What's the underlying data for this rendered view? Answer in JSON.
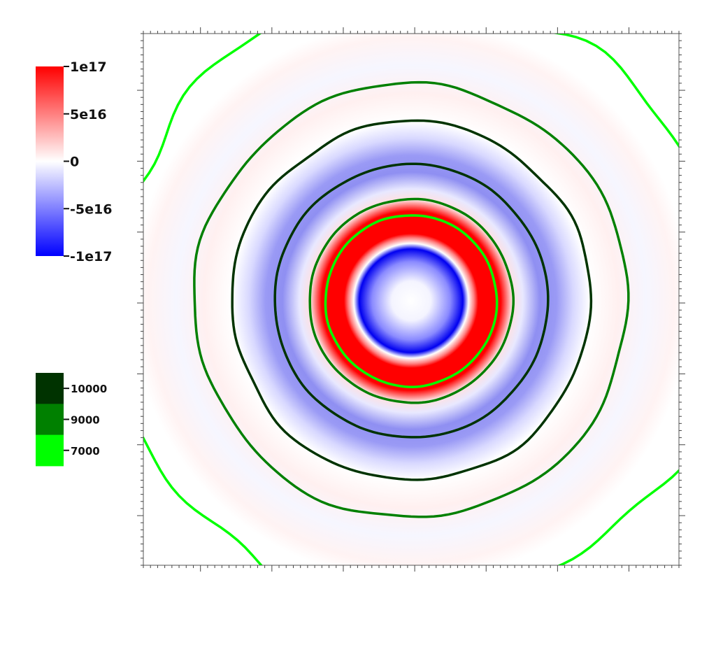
{
  "chart_data": {
    "type": "heatmap",
    "title": "",
    "xlabel": "",
    "ylabel": "",
    "grid": false,
    "field_colorbar": {
      "range": [
        -1e+17,
        1e+17
      ],
      "colors": {
        "min": "#0000ff",
        "mid": "#ffffff",
        "max": "#ff0000"
      },
      "ticks": [
        {
          "value": 1e+17,
          "label": "1e17"
        },
        {
          "value": 5e+16,
          "label": "5e16"
        },
        {
          "value": 0,
          "label": "0"
        },
        {
          "value": -5e+16,
          "label": "-5e16"
        },
        {
          "value": -1e+17,
          "label": "-1e17"
        }
      ]
    },
    "contour_legend": {
      "levels": [
        {
          "value": 10000,
          "label": "10000",
          "color": "#003300"
        },
        {
          "value": 9000,
          "label": "9000",
          "color": "#008000"
        },
        {
          "value": 7000,
          "label": "7000",
          "color": "#00ff00"
        }
      ]
    },
    "rings": [
      {
        "radius": 0.16,
        "field": -1e+17,
        "note_color": "#0000ff"
      },
      {
        "radius": 0.26,
        "field": 1e+17,
        "note_color": "#ff0000"
      },
      {
        "radius": 0.4,
        "field": -5e+16,
        "note_color": "#7f7fff"
      }
    ],
    "contours": [
      {
        "level": 7000,
        "radius": 0.16
      },
      {
        "level": 9000,
        "radius": 0.19
      },
      {
        "level": 10000,
        "radius": 0.255
      },
      {
        "level": 10000,
        "radius": 0.335
      },
      {
        "level": 9000,
        "radius": 0.405
      },
      {
        "level": 7000,
        "radius": 0.57
      }
    ]
  }
}
